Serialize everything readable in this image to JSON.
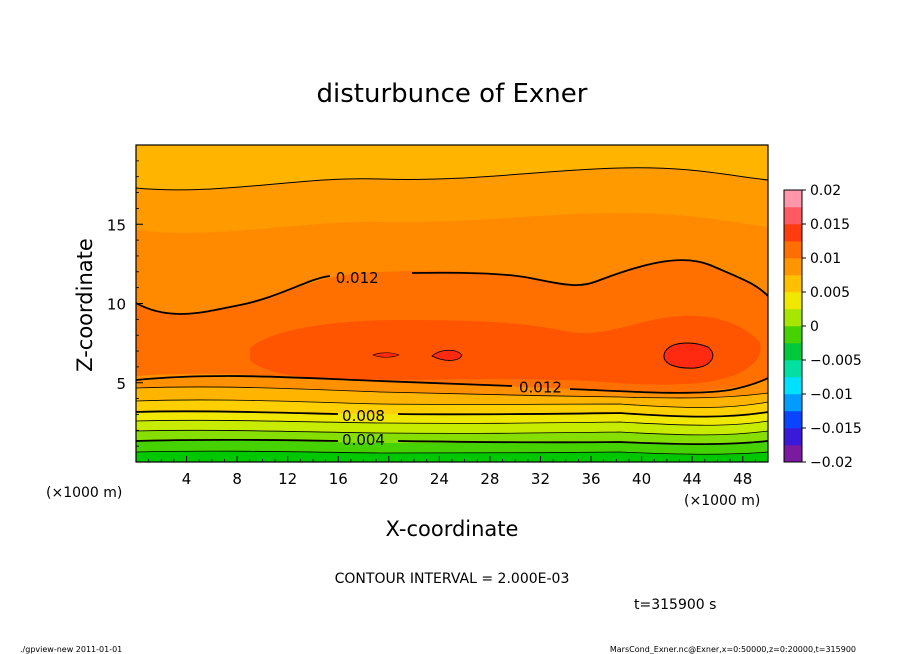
{
  "chart_data": {
    "type": "heatmap",
    "subtype": "filled-contour",
    "title": "disturbunce of Exner",
    "xlabel": "X-coordinate",
    "ylabel": "Z-coordinate",
    "x_unit": "(×1000 m)",
    "y_unit": "(×1000 m)",
    "xlim": [
      0,
      50
    ],
    "ylim": [
      0,
      20
    ],
    "x_ticks": [
      4,
      8,
      12,
      16,
      20,
      24,
      28,
      32,
      36,
      40,
      44,
      48
    ],
    "y_ticks": [
      5,
      10,
      15
    ],
    "contour_interval_text": "CONTOUR INTERVAL = 2.000E-03",
    "time_text": "t=315900 s",
    "contour_labels": [
      {
        "text": "0.012",
        "x": 17.5,
        "z": 11.6
      },
      {
        "text": "0.012",
        "x": 32,
        "z": 4.7
      },
      {
        "text": "0.008",
        "x": 18,
        "z": 2.9
      },
      {
        "text": "0.004",
        "x": 18,
        "z": 1.4
      }
    ],
    "colorbar": {
      "min": -0.02,
      "max": 0.02,
      "tick_labels": [
        "0.02",
        "0.015",
        "0.01",
        "0.005",
        "0",
        "−0.005",
        "−0.01",
        "−0.015",
        "−0.02"
      ],
      "tick_values": [
        0.02,
        0.015,
        0.01,
        0.005,
        0,
        -0.005,
        -0.01,
        -0.015,
        -0.02
      ]
    },
    "levels": [
      {
        "value": 0.002,
        "color": "#00c800"
      },
      {
        "value": 0.004,
        "color": "#32d200"
      },
      {
        "value": 0.006,
        "color": "#7ade00"
      },
      {
        "value": 0.008,
        "color": "#c8ec00"
      },
      {
        "value": 0.01,
        "color": "#f5e400"
      },
      {
        "value": 0.012,
        "color": "#ffb400"
      },
      {
        "value": 0.014,
        "color": "#ff9100"
      },
      {
        "value": 0.016,
        "color": "#ff7000"
      },
      {
        "value": 0.018,
        "color": "#ff4000"
      }
    ]
  },
  "footer": {
    "left": "./gpview-new   2011-01-01",
    "right": "MarsCond_Exner.nc@Exner,x=0:50000,z=0:20000,t=315900"
  }
}
